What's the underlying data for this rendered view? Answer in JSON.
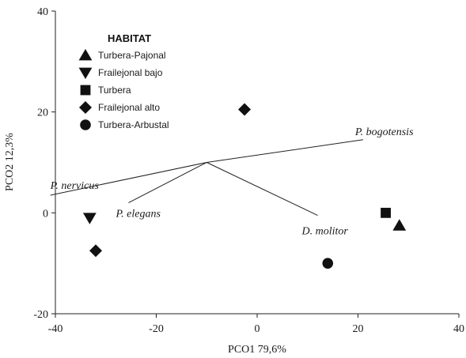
{
  "chart_data": {
    "type": "scatter",
    "xlabel": "PCO1 79,6%",
    "ylabel": "PCO2 12,3%",
    "xlim": [
      -40,
      40
    ],
    "ylim": [
      -20,
      40
    ],
    "xticks": [
      "-40",
      "-20",
      "0",
      "20",
      "40"
    ],
    "yticks": [
      "-20",
      "0",
      "20",
      "40"
    ],
    "grid": false,
    "legend": {
      "title": "HABITAT",
      "position": "top-left",
      "entries": [
        {
          "label": "Turbera-Pajonal",
          "marker": "triangle-up"
        },
        {
          "label": "Frailejonal bajo",
          "marker": "triangle-down"
        },
        {
          "label": "Turbera",
          "marker": "square"
        },
        {
          "label": "Frailejonal alto",
          "marker": "diamond"
        },
        {
          "label": "Turbera-Arbustal",
          "marker": "circle"
        }
      ]
    },
    "series": [
      {
        "name": "Turbera-Pajonal",
        "marker": "triangle-up",
        "points": [
          {
            "x": 28.2,
            "y": -2.5
          }
        ]
      },
      {
        "name": "Frailejonal bajo",
        "marker": "triangle-down",
        "points": [
          {
            "x": -33.2,
            "y": -1.0
          }
        ]
      },
      {
        "name": "Turbera",
        "marker": "square",
        "points": [
          {
            "x": 25.5,
            "y": 0.0
          }
        ]
      },
      {
        "name": "Frailejonal alto",
        "marker": "diamond",
        "points": [
          {
            "x": -2.5,
            "y": 20.5
          },
          {
            "x": -32.0,
            "y": -7.5
          }
        ]
      },
      {
        "name": "Turbera-Arbustal",
        "marker": "circle",
        "points": [
          {
            "x": 14.0,
            "y": -10.0
          }
        ]
      }
    ],
    "vectors": {
      "origin": {
        "x": -10.0,
        "y": 10.0
      },
      "items": [
        {
          "label": "P. bogotensis",
          "x": 21.0,
          "y": 14.5
        },
        {
          "label": "P. nervicus",
          "x": -41.0,
          "y": 3.5
        },
        {
          "label": "P. elegans",
          "x": -25.5,
          "y": 2.0
        },
        {
          "label": "D. molitor",
          "x": 12.0,
          "y": -0.5
        }
      ]
    }
  }
}
